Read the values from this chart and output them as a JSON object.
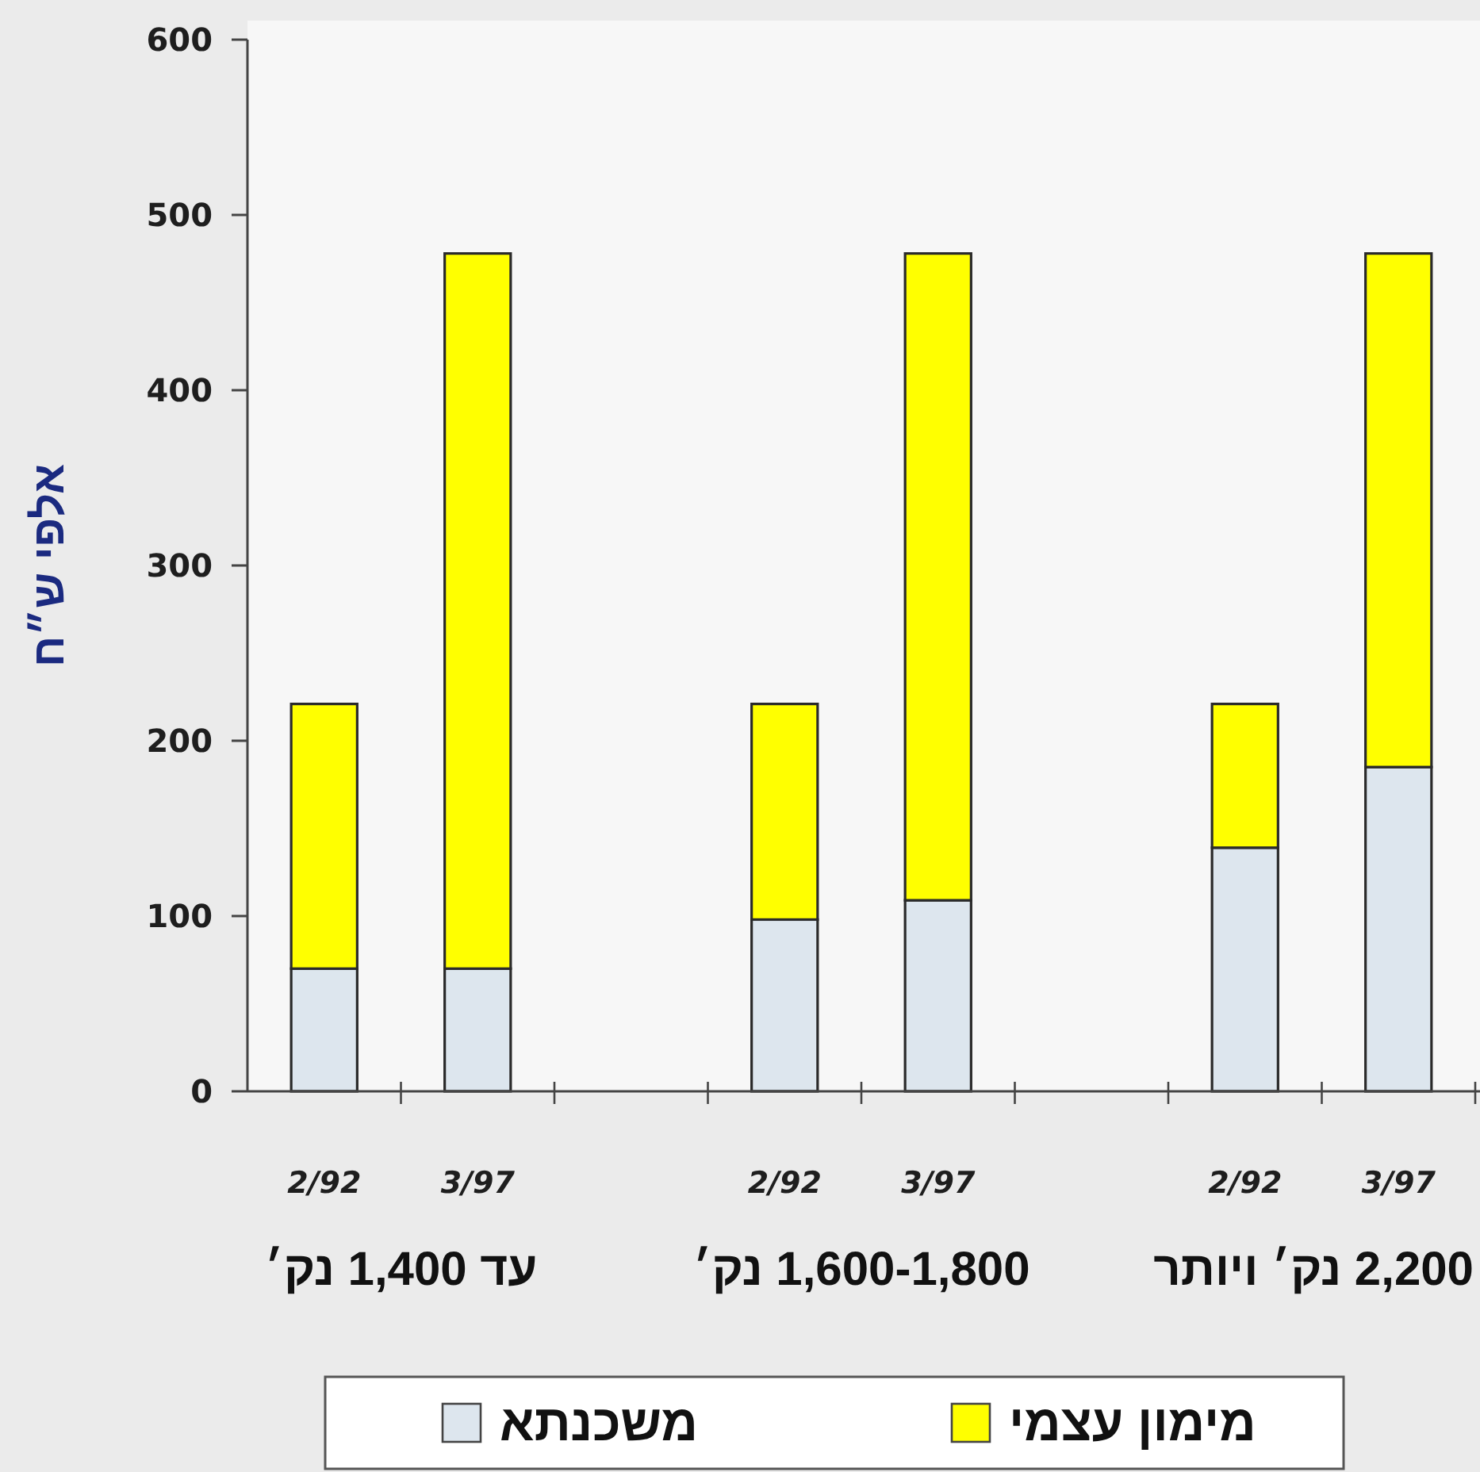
{
  "chart_data": {
    "type": "bar",
    "stacked": true,
    "ylabel": "אלפי ש״ח",
    "categories": [
      "2/92",
      "3/97",
      null,
      "2/92",
      "3/97",
      null,
      "2/92",
      "3/97"
    ],
    "series": [
      {
        "name": "משכנתא",
        "color": "#dde6ee",
        "values": [
          70,
          70,
          null,
          98,
          109,
          null,
          139,
          185
        ]
      },
      {
        "name": "מימון עצמי",
        "color": "#ffff00",
        "values": [
          151,
          408,
          null,
          123,
          369,
          null,
          82,
          293
        ]
      }
    ],
    "ylim": [
      0,
      600
    ],
    "yticks": [
      0,
      100,
      200,
      300,
      400,
      500,
      600
    ],
    "annotations": [
      "עד 1,400 נק׳",
      "1,600-1,800 נק׳",
      "2,200 נק׳ ויותר"
    ],
    "legend": "bottom"
  }
}
